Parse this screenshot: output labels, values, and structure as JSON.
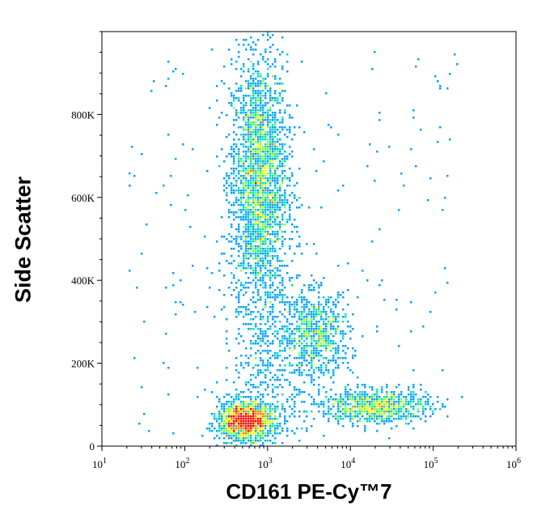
{
  "chart_data": {
    "type": "scatter",
    "subtype": "flow-cytometry pseudocolor density dot plot",
    "title": "",
    "xlabel": "CD161 PE-Cy™7",
    "ylabel": "Side Scatter",
    "x_scale": "log",
    "xlim": [
      10,
      1000000
    ],
    "ylim": [
      0,
      1000000
    ],
    "x_ticks": [
      {
        "value": 10,
        "base": "10",
        "exp": "1"
      },
      {
        "value": 100,
        "base": "10",
        "exp": "2"
      },
      {
        "value": 1000,
        "base": "10",
        "exp": "3"
      },
      {
        "value": 10000,
        "base": "10",
        "exp": "4"
      },
      {
        "value": 100000,
        "base": "10",
        "exp": "5"
      },
      {
        "value": 1000000,
        "base": "10",
        "exp": "6"
      }
    ],
    "y_ticks": [
      {
        "value": 0,
        "label": "0"
      },
      {
        "value": 200000,
        "label": "200K"
      },
      {
        "value": 400000,
        "label": "400K"
      },
      {
        "value": 600000,
        "label": "600K"
      },
      {
        "value": 800000,
        "label": "800K"
      }
    ],
    "grid": false,
    "density_colors": [
      "#0000ff",
      "#00a0ff",
      "#00e0c0",
      "#80ff40",
      "#ffff00",
      "#ff8000",
      "#ff0000"
    ],
    "populations": [
      {
        "x_center": 800,
        "y_center": 640000,
        "x_spread_log": 0.17,
        "y_spread": 150000,
        "events": 2600
      },
      {
        "x_center": 550,
        "y_center": 60000,
        "x_spread_log": 0.16,
        "y_spread": 22000,
        "events": 1700
      },
      {
        "x_center": 4000,
        "y_center": 270000,
        "x_spread_log": 0.2,
        "y_spread": 50000,
        "events": 700
      },
      {
        "x_center": 20000,
        "y_center": 95000,
        "x_spread_log": 0.32,
        "y_spread": 20000,
        "events": 900
      },
      {
        "x_center": 1200,
        "y_center": 200000,
        "x_spread_log": 0.25,
        "y_spread": 120000,
        "events": 500
      }
    ]
  }
}
